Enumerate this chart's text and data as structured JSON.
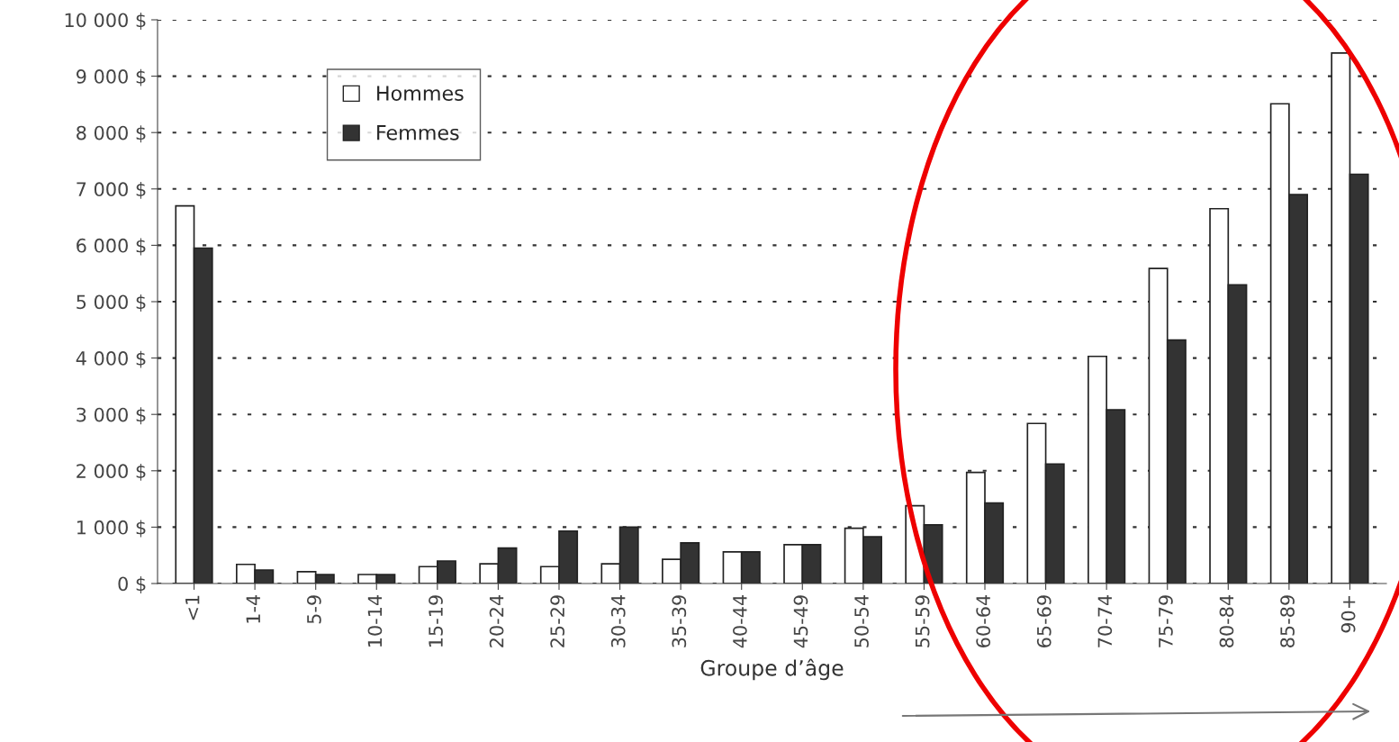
{
  "chart_data": {
    "type": "bar",
    "xlabel": "Groupe d’âge",
    "categories": [
      "<1",
      "1-4",
      "5-9",
      "10-14",
      "15-19",
      "20-24",
      "25-29",
      "30-34",
      "35-39",
      "40-44",
      "45-49",
      "50-54",
      "55-59",
      "60-64",
      "65-69",
      "70-74",
      "75-79",
      "80-84",
      "85-89",
      "90+"
    ],
    "series": [
      {
        "name": "Hommes",
        "color": "#ffffff",
        "values": [
          6700,
          340,
          210,
          160,
          300,
          350,
          300,
          350,
          430,
          560,
          690,
          980,
          1380,
          1970,
          2840,
          4030,
          5590,
          6650,
          8510,
          9410
        ]
      },
      {
        "name": "Femmes",
        "color": "#333333",
        "values": [
          5950,
          240,
          160,
          160,
          400,
          630,
          930,
          1000,
          720,
          560,
          690,
          830,
          1040,
          1430,
          2120,
          3080,
          4320,
          5300,
          6900,
          7260
        ]
      }
    ],
    "ylim": [
      0,
      10000
    ],
    "yticks": [
      {
        "value": 0,
        "label": "0 $"
      },
      {
        "value": 1000,
        "label": "1 000 $"
      },
      {
        "value": 2000,
        "label": "2 000 $"
      },
      {
        "value": 3000,
        "label": "3 000 $"
      },
      {
        "value": 4000,
        "label": "4 000 $"
      },
      {
        "value": 5000,
        "label": "5 000 $"
      },
      {
        "value": 6000,
        "label": "6 000 $"
      },
      {
        "value": 7000,
        "label": "7 000 $"
      },
      {
        "value": 8000,
        "label": "8 000 $"
      },
      {
        "value": 9000,
        "label": "9 000 $"
      },
      {
        "value": 10000,
        "label": "10 000 $"
      }
    ],
    "grid": "y",
    "legend": "top left"
  }
}
